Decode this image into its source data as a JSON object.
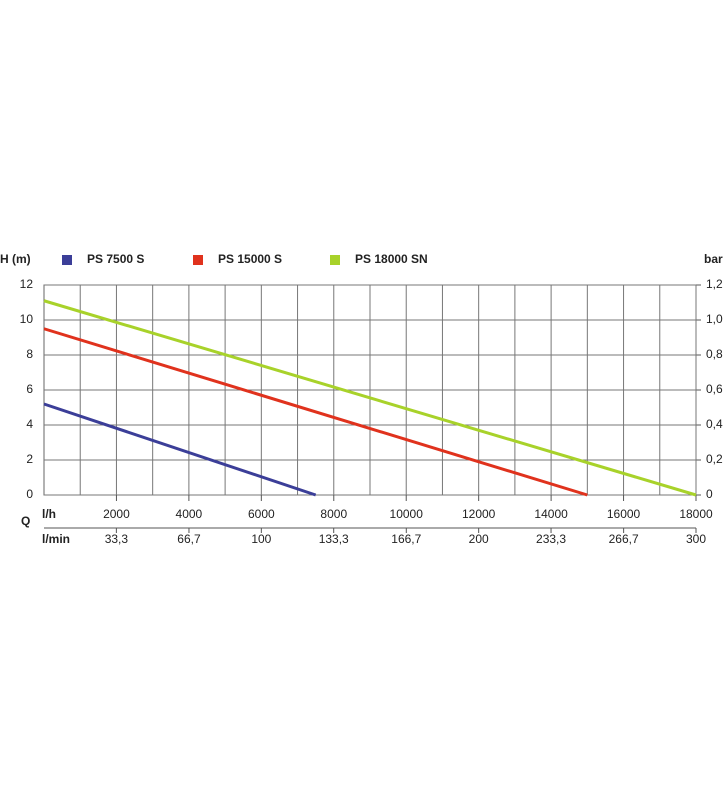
{
  "chart_data": {
    "type": "line",
    "y_label": "H (m)",
    "y2_label": "bar",
    "x_label": "l/h",
    "x2_label": "l/min",
    "q_label": "Q",
    "series": [
      {
        "name": "PS 7500 S",
        "color": "#3b3e98",
        "x": [
          0,
          7500
        ],
        "values": [
          5.2,
          0
        ]
      },
      {
        "name": "PS 15000 S",
        "color": "#e0321d",
        "x": [
          0,
          15000
        ],
        "values": [
          9.5,
          0
        ]
      },
      {
        "name": "PS 18000 SN",
        "color": "#a8d22a",
        "x": [
          0,
          18000
        ],
        "values": [
          11.1,
          0
        ]
      }
    ],
    "xlim": [
      0,
      18000
    ],
    "xticks": [
      2000,
      4000,
      6000,
      8000,
      10000,
      12000,
      14000,
      16000,
      18000
    ],
    "xminor": [
      1000,
      3000,
      5000,
      7000,
      9000,
      11000,
      13000,
      15000,
      17000
    ],
    "x2lim": [
      0,
      300
    ],
    "x2ticks": [
      {
        "value": 33.3,
        "label": "33,3"
      },
      {
        "value": 66.7,
        "label": "66,7"
      },
      100,
      {
        "value": 133.3,
        "label": "133,3"
      },
      {
        "value": 166.7,
        "label": "166,7"
      },
      200,
      {
        "value": 233.3,
        "label": "233,3"
      },
      {
        "value": 266.7,
        "label": "266,7"
      },
      300
    ],
    "ylim": [
      0,
      12
    ],
    "yticks": [
      0,
      2,
      4,
      6,
      8,
      10,
      12
    ],
    "y2lim": [
      0,
      1.2
    ],
    "y2ticks": [
      0,
      {
        "value": 0.2,
        "label": "0,2"
      },
      {
        "value": 0.4,
        "label": "0,4"
      },
      {
        "value": 0.6,
        "label": "0,6"
      },
      {
        "value": 0.8,
        "label": "0,8"
      },
      {
        "value": 1.0,
        "label": "1,0"
      },
      {
        "value": 1.2,
        "label": "1,2"
      }
    ],
    "grid": true
  }
}
